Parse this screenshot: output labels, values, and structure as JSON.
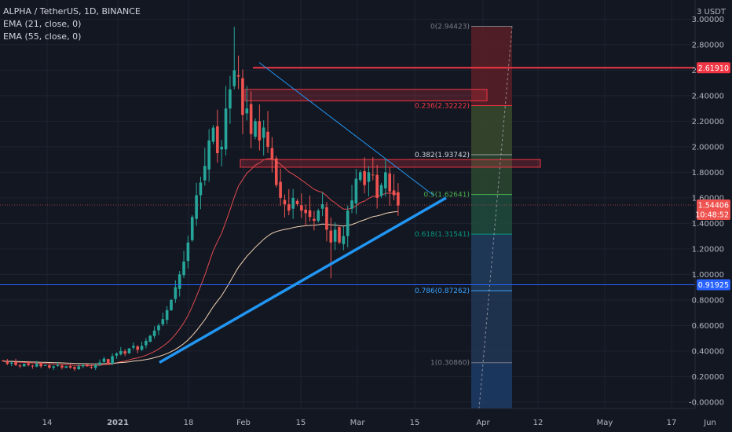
{
  "header": {
    "symbol_line": "ALPHA / TetherUS, 1D, BINANCE",
    "ema1": "EMA (21, close, 0)",
    "ema2": "EMA (55, close, 0)",
    "currency": "3 USDT"
  },
  "colors": {
    "background": "#131722",
    "up": "#26a69a",
    "down": "#ef5350",
    "ema21": "#e24a4f",
    "ema55": "#f2d3b4",
    "trend": "#2196f3",
    "resistance": "#f23645",
    "support_blue": "#2962ff"
  },
  "chart_data": {
    "type": "candlestick",
    "title": "ALPHA / TetherUS, 1D, BINANCE",
    "x_tick_labels": [
      "14",
      "2021",
      "18",
      "Feb",
      "15",
      "Mar",
      "15",
      "Apr",
      "12",
      "May",
      "17",
      "Jun"
    ],
    "y_ticks": [
      "3.00000",
      "2.80000",
      "2.60000",
      "2.40000",
      "2.20000",
      "2.00000",
      "1.80000",
      "1.60000",
      "1.40000",
      "1.20000",
      "1.00000",
      "0.80000",
      "0.60000",
      "0.40000",
      "0.20000",
      "-0.00000"
    ],
    "y_range": [
      -0.05,
      3.15
    ],
    "series_close_days": [
      0.32,
      0.3,
      0.31,
      0.29,
      0.28,
      0.3,
      0.29,
      0.28,
      0.3,
      0.28,
      0.29,
      0.27,
      0.28,
      0.29,
      0.27,
      0.28,
      0.27,
      0.26,
      0.28,
      0.29,
      0.28,
      0.27,
      0.29,
      0.31,
      0.34,
      0.3,
      0.36,
      0.38,
      0.4,
      0.38,
      0.42,
      0.44,
      0.41,
      0.44,
      0.48,
      0.52,
      0.56,
      0.6,
      0.65,
      0.72,
      0.8,
      0.9,
      1.0,
      1.1,
      1.25,
      1.45,
      1.62,
      1.72,
      1.85,
      2.05,
      2.15,
      1.95,
      2.0,
      2.3,
      2.45,
      2.6,
      2.55,
      2.25,
      2.3,
      2.1,
      2.2,
      2.05,
      2.15,
      2.0,
      1.9,
      1.7,
      1.6,
      1.55,
      1.5,
      1.6,
      1.55,
      1.5,
      1.48,
      1.45,
      1.42,
      1.5,
      1.55,
      1.35,
      1.25,
      1.35,
      1.25,
      1.3,
      1.5,
      1.58,
      1.75,
      1.8,
      1.7,
      1.8,
      1.78,
      1.6,
      1.7,
      1.8,
      1.65,
      1.62,
      1.54
    ],
    "ema21_note": "EMA (21, close, 0)",
    "ema55_note": "EMA (55, close, 0)",
    "current_price": "1.54406",
    "countdown": "10:48:52",
    "resistance_level": "2.61910",
    "support_level": "0.91925",
    "fib_levels": [
      {
        "label": "0(2.94423)",
        "value": 2.94423
      },
      {
        "label": "0.236(2.32222)",
        "value": 2.32222
      },
      {
        "label": "0.382(1.93742)",
        "value": 1.93742
      },
      {
        "label": "0.5(1.62641)",
        "value": 1.62641
      },
      {
        "label": "0.618(1.31541)",
        "value": 1.31541
      },
      {
        "label": "0.786(0.87262)",
        "value": 0.87262
      },
      {
        "label": "1(0.30860)",
        "value": 0.3086
      }
    ],
    "zones": [
      {
        "name": "resistance-zone",
        "top": 2.45,
        "bottom": 2.36
      },
      {
        "name": "mid-zone",
        "top": 1.9,
        "bottom": 1.84
      }
    ]
  }
}
